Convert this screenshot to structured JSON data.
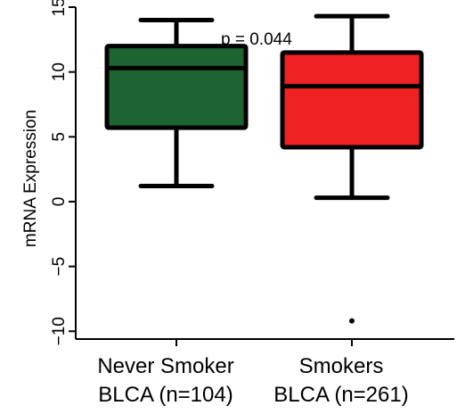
{
  "chart_data": {
    "type": "boxplot",
    "title": "",
    "xlabel": "",
    "ylabel": "mRNA Expression",
    "ylim": [
      -10.6,
      15
    ],
    "y_ticks": [
      -10,
      -5,
      0,
      5,
      10,
      15
    ],
    "y_tick_labels": [
      "−10",
      "−5",
      "0",
      "5",
      "10",
      "15"
    ],
    "grid": false,
    "annotation": "p = 0.044",
    "categories": [
      {
        "line1": "Never Smoker",
        "line2": "BLCA (n=104)"
      },
      {
        "line1": "Smokers",
        "line2": "BLCA (n=261)"
      }
    ],
    "boxes": [
      {
        "whisker_low": 1.2,
        "q1": 5.7,
        "median": 10.3,
        "q3": 12.0,
        "whisker_high": 14.0,
        "outliers": [],
        "color": "#1e6432"
      },
      {
        "whisker_low": 0.3,
        "q1": 4.2,
        "median": 8.9,
        "q3": 11.5,
        "whisker_high": 14.3,
        "outliers": [
          -9.2
        ],
        "color": "#ee2222"
      }
    ]
  }
}
